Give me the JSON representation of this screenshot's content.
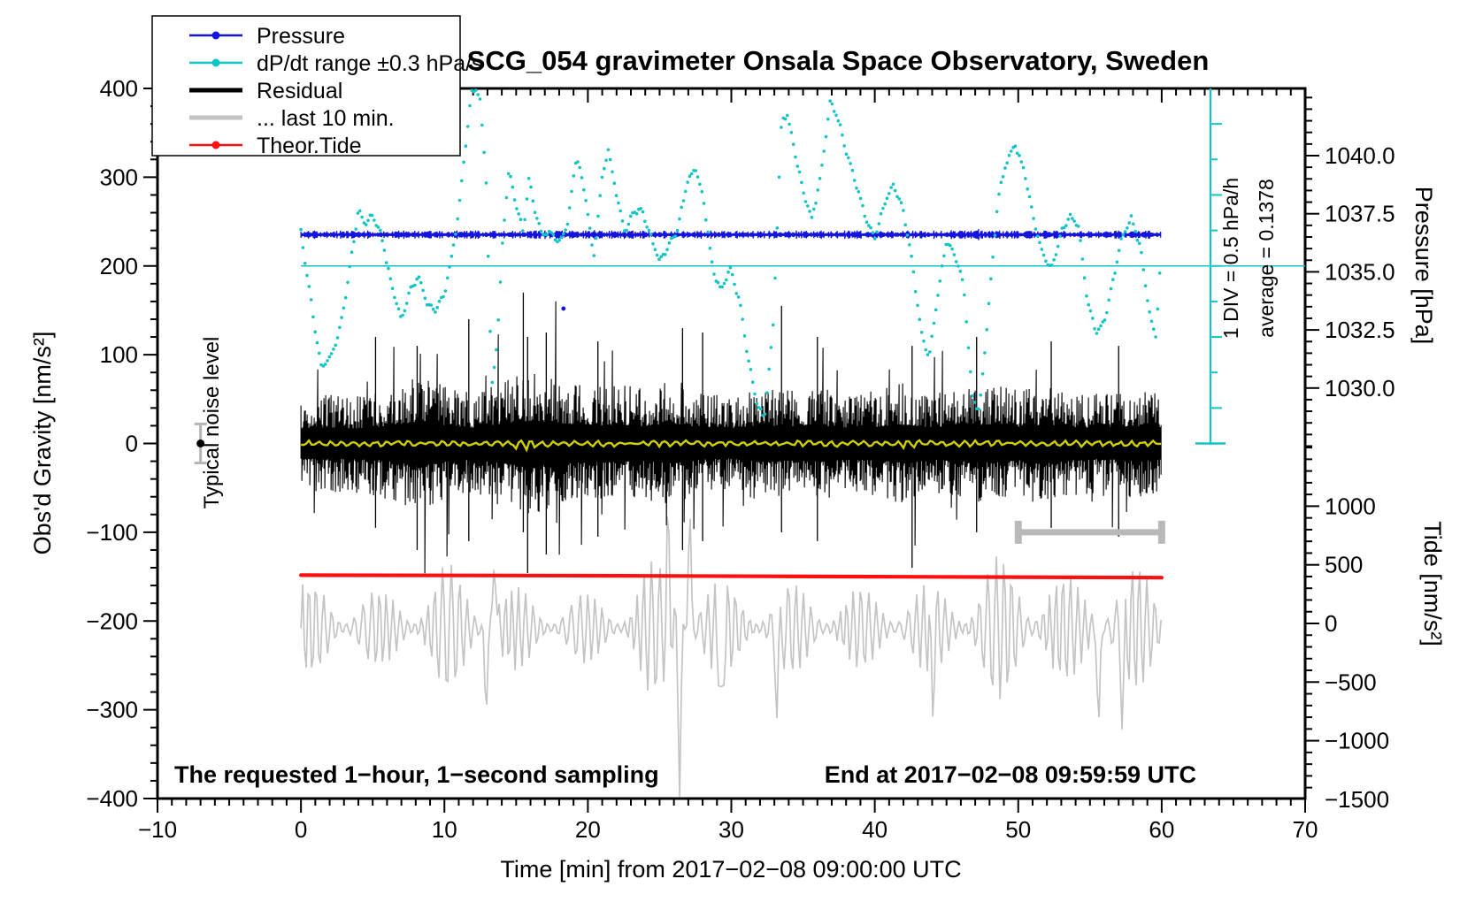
{
  "chart_data": {
    "type": "line",
    "title": "SCG_054 gravimeter Onsala Space Observatory, Sweden",
    "xlabel": "Time [min] from 2017−02−08 09:00:00 UTC",
    "x_range": [
      -10,
      70
    ],
    "x_ticks_major": [
      -10,
      0,
      10,
      20,
      30,
      40,
      50,
      60,
      70
    ],
    "x_tick_labels": [
      "−10",
      "0",
      "10",
      "20",
      "30",
      "40",
      "50",
      "60",
      "70"
    ],
    "x_minor_step": 1,
    "axes": {
      "gravity": {
        "label": "Obs'd Gravity [nm/s²]",
        "range": [
          -400,
          400
        ],
        "ticks": [
          400,
          300,
          200,
          100,
          0,
          -100,
          -200,
          -300,
          -400
        ],
        "tick_labels": [
          "400",
          "300",
          "200",
          "100",
          "0",
          "−100",
          "−200",
          "−300",
          "−400"
        ],
        "minor_step": 20
      },
      "pressure": {
        "label": "Pressure [hPa]",
        "ticks": [
          1040.0,
          1037.5,
          1035.0,
          1032.5,
          1030.0
        ],
        "tick_labels": [
          "1040.0",
          "1037.5",
          "1035.0",
          "1032.5",
          "1030.0"
        ],
        "minor_step": 0.5,
        "minor_range": [
          1027.5,
          1042.5
        ]
      },
      "tide": {
        "label": "Tide [nm/s²]",
        "ticks": [
          1000,
          500,
          0,
          -500,
          -1000,
          -1500
        ],
        "tick_labels": [
          "1000",
          "500",
          "0",
          "−500",
          "−1000",
          "−1500"
        ],
        "minor_step": 100,
        "minor_range": [
          -1500,
          1500
        ]
      }
    },
    "legend": [
      {
        "label": "Pressure",
        "color": "#1414dd",
        "dot": true,
        "lw": 2.5
      },
      {
        "label": "dP/dt range ±0.3 hPa/s",
        "color": "#12c4c6",
        "dot": true,
        "lw": 2.5
      },
      {
        "label": "Residual",
        "color": "#000000",
        "dot": false,
        "lw": 5
      },
      {
        "label": "... last 10 min.",
        "color": "#c3c3c3",
        "dot": false,
        "lw": 5
      },
      {
        "label": "Theor.Tide",
        "color": "#ff1010",
        "dot": true,
        "lw": 2.5
      }
    ],
    "annotations": {
      "sampling_note": "The requested 1−hour, 1−second sampling",
      "end_note": "End at 2017−02−08 09:59:59 UTC",
      "div_note": "1 DIV = 0.5 hPa/h",
      "average_note": "average = 0.1378",
      "noise_label": "Typical noise level",
      "noise_marker": {
        "x": -7,
        "gravity": 0,
        "error": 22
      }
    },
    "ruler": {
      "x": 63.4,
      "gravity_top": 400,
      "gravity_bottom": 0,
      "tick_step_gravity": 40
    },
    "series": {
      "pressure": {
        "color": "#1414dd",
        "mean_hpa": 1036.6,
        "noise_hpa": 0.13,
        "x_start": 0,
        "x_end": 60,
        "outlier": {
          "x": 18.3,
          "gravity": 152
        }
      },
      "dpdt": {
        "color": "#12c4c6",
        "average_line_gravity": 200,
        "average_hpa_per_h": 0.1378,
        "points": [
          [
            0,
            238
          ],
          [
            0.7,
            160
          ],
          [
            1.4,
            86
          ],
          [
            2.0,
            95
          ],
          [
            2.6,
            120
          ],
          [
            3.2,
            175
          ],
          [
            4.0,
            262
          ],
          [
            4.5,
            248
          ],
          [
            5.0,
            258
          ],
          [
            5.6,
            235
          ],
          [
            6.3,
            180
          ],
          [
            7.0,
            138
          ],
          [
            7.6,
            172
          ],
          [
            8.2,
            188
          ],
          [
            8.8,
            158
          ],
          [
            9.4,
            150
          ],
          [
            10.0,
            168
          ],
          [
            10.5,
            210
          ],
          [
            11.0,
            262
          ],
          [
            11.5,
            340
          ],
          [
            11.9,
            395
          ],
          [
            12.2,
            400
          ],
          [
            12.5,
            385
          ],
          [
            12.9,
            300
          ],
          [
            13.3,
            62
          ],
          [
            13.7,
            120
          ],
          [
            14.1,
            240
          ],
          [
            14.5,
            307
          ],
          [
            15.0,
            268
          ],
          [
            15.5,
            238
          ],
          [
            15.9,
            300
          ],
          [
            16.3,
            262
          ],
          [
            16.8,
            235
          ],
          [
            17.4,
            238
          ],
          [
            18.0,
            226
          ],
          [
            18.6,
            248
          ],
          [
            19.2,
            325
          ],
          [
            19.8,
            282
          ],
          [
            20.4,
            208
          ],
          [
            21.0,
            300
          ],
          [
            21.4,
            332
          ],
          [
            22.0,
            280
          ],
          [
            22.6,
            238
          ],
          [
            23.2,
            262
          ],
          [
            23.8,
            262
          ],
          [
            24.4,
            232
          ],
          [
            25.0,
            205
          ],
          [
            25.6,
            222
          ],
          [
            26.2,
            238
          ],
          [
            26.9,
            292
          ],
          [
            27.5,
            312
          ],
          [
            28.1,
            272
          ],
          [
            28.7,
            196
          ],
          [
            29.3,
            172
          ],
          [
            29.9,
            198
          ],
          [
            30.6,
            158
          ],
          [
            31.2,
            92
          ],
          [
            31.8,
            45
          ],
          [
            32.3,
            28
          ],
          [
            32.9,
            128
          ],
          [
            33.5,
            362
          ],
          [
            33.9,
            372
          ],
          [
            34.4,
            330
          ],
          [
            35.0,
            286
          ],
          [
            35.6,
            252
          ],
          [
            36.2,
            298
          ],
          [
            36.9,
            386
          ],
          [
            37.4,
            368
          ],
          [
            38.0,
            330
          ],
          [
            38.7,
            292
          ],
          [
            39.4,
            252
          ],
          [
            40.0,
            232
          ],
          [
            40.7,
            272
          ],
          [
            41.3,
            292
          ],
          [
            42.0,
            262
          ],
          [
            42.6,
            206
          ],
          [
            43.2,
            128
          ],
          [
            43.8,
            96
          ],
          [
            44.4,
            168
          ],
          [
            45.0,
            228
          ],
          [
            45.6,
            212
          ],
          [
            46.2,
            178
          ],
          [
            46.8,
            52
          ],
          [
            47.3,
            36
          ],
          [
            47.9,
            148
          ],
          [
            48.6,
            278
          ],
          [
            49.2,
            318
          ],
          [
            49.8,
            336
          ],
          [
            50.4,
            308
          ],
          [
            51.0,
            258
          ],
          [
            51.7,
            214
          ],
          [
            52.3,
            196
          ],
          [
            53.0,
            238
          ],
          [
            53.6,
            256
          ],
          [
            54.2,
            244
          ],
          [
            54.8,
            162
          ],
          [
            55.4,
            126
          ],
          [
            56.0,
            136
          ],
          [
            56.6,
            182
          ],
          [
            57.2,
            232
          ],
          [
            57.9,
            254
          ],
          [
            58.5,
            222
          ],
          [
            59.2,
            142
          ],
          [
            59.6,
            120
          ],
          [
            60.0,
            228
          ]
        ]
      },
      "residual": {
        "color": "#000000",
        "mean": 0,
        "x_start": 0,
        "x_end": 60,
        "envelope_step_min": 2,
        "envelope": [
          60,
          64,
          60,
          70,
          88,
          72,
          64,
          80,
          92,
          82,
          72,
          74,
          70,
          80,
          64,
          60,
          74,
          68,
          72,
          64,
          66,
          76,
          64,
          72,
          76,
          68,
          72,
          66,
          62,
          70,
          64
        ],
        "spikes": [
          [
            5.2,
            120,
            95
          ],
          [
            8.1,
            110,
            120
          ],
          [
            11.7,
            140,
            110
          ],
          [
            15.5,
            170,
            100
          ],
          [
            15.8,
            120,
            146
          ],
          [
            17.1,
            125,
            125
          ],
          [
            20.7,
            115,
            105
          ],
          [
            26.6,
            130,
            120
          ],
          [
            28.0,
            125,
            110
          ],
          [
            33.5,
            155,
            100
          ],
          [
            36.0,
            120,
            110
          ],
          [
            42.6,
            110,
            140
          ],
          [
            47.1,
            120,
            100
          ],
          [
            52.3,
            115,
            95
          ],
          [
            57.0,
            110,
            105
          ]
        ]
      },
      "smoothed": {
        "color": "#cfcf00",
        "gravity": 0,
        "amplitude": 2.2
      },
      "last10": {
        "color": "#c4c4c4",
        "center_tide": -40,
        "period_min": 0.52,
        "envelope_step_min": 2,
        "envelope": [
          430,
          400,
          360,
          330,
          420,
          560,
          520,
          380,
          340,
          310,
          300,
          310,
          600,
          520,
          470,
          420,
          380,
          400,
          380,
          360,
          350,
          420,
          390,
          430,
          600,
          680,
          560,
          430,
          500,
          560,
          480
        ],
        "spikes": [
          [
            12.9,
            -700
          ],
          [
            13.5,
            650
          ],
          [
            25.6,
            760
          ],
          [
            26.4,
            -1380
          ],
          [
            27.1,
            980
          ],
          [
            29.3,
            -980
          ],
          [
            33.2,
            -760
          ],
          [
            44.0,
            -620
          ],
          [
            55.6,
            -880
          ],
          [
            57.3,
            -800
          ]
        ],
        "bar": {
          "x0": 50,
          "x1": 60,
          "gravity": -100,
          "color": "#b9b9b9"
        }
      },
      "tide": {
        "color": "#ff1010",
        "points_tide": [
          [
            0,
            412
          ],
          [
            20,
            407
          ],
          [
            40,
            399
          ],
          [
            60,
            391
          ]
        ]
      }
    }
  }
}
